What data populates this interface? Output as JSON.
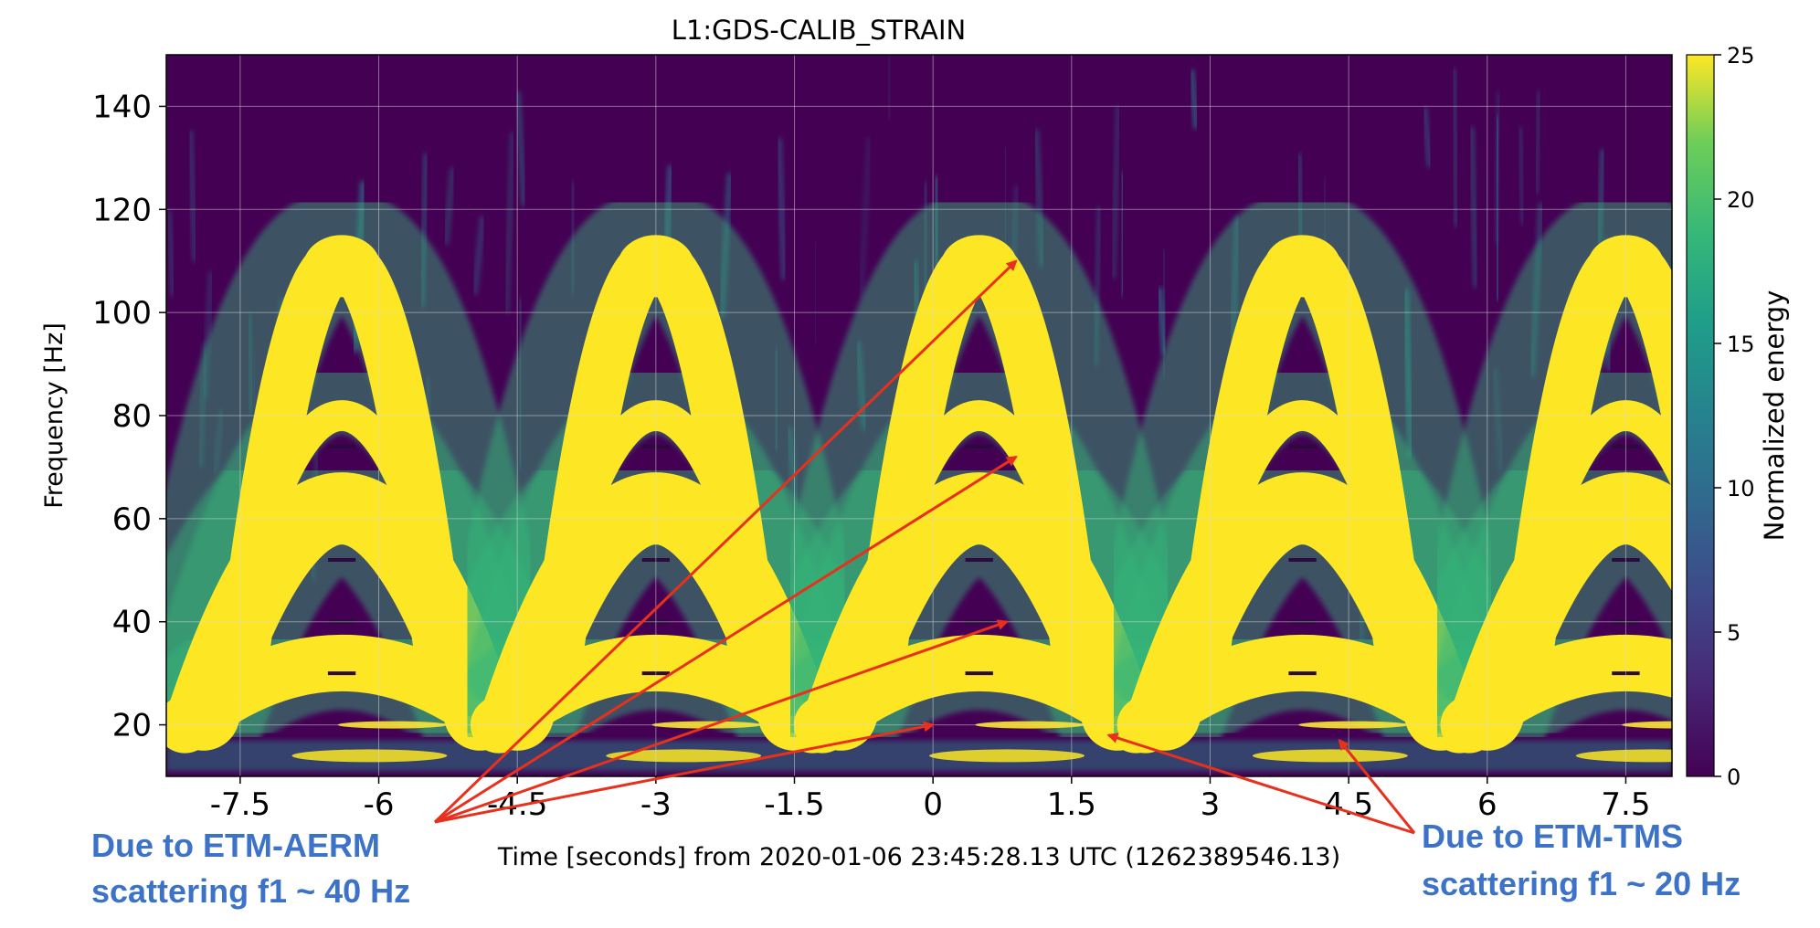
{
  "chart_data": {
    "type": "heatmap",
    "title": "L1:GDS-CALIB_STRAIN",
    "xlabel": "Time [seconds] from 2020-01-06 23:45:28.13 UTC (1262389546.13)",
    "ylabel": "Frequency [Hz]",
    "xlim": [
      -8.3,
      8.0
    ],
    "ylim": [
      10,
      150
    ],
    "x_ticks": [
      -7.5,
      -6,
      -4.5,
      -3,
      -1.5,
      0,
      1.5,
      3,
      4.5,
      6,
      7.5
    ],
    "x_tick_labels": [
      "-7.5",
      "-6",
      "-4.5",
      "-3",
      "-1.5",
      "0",
      "1.5",
      "3",
      "4.5",
      "6",
      "7.5"
    ],
    "y_ticks": [
      20,
      40,
      60,
      80,
      100,
      120,
      140
    ],
    "y_tick_labels": [
      "20",
      "40",
      "60",
      "80",
      "100",
      "120",
      "140"
    ],
    "grid": true,
    "colorbar": {
      "label": "Normalized energy",
      "range": [
        0,
        25
      ],
      "ticks": [
        0,
        5,
        10,
        15,
        20,
        25
      ],
      "tick_labels": [
        "0",
        "5",
        "10",
        "15",
        "20",
        "25"
      ],
      "colormap": "viridis"
    },
    "arch_centers_s": [
      -6.4,
      -3.0,
      0.5,
      4.0,
      7.5
    ],
    "arch_halfwidth_s": 1.7,
    "arch_bands": [
      {
        "peak_hz": 32,
        "base_hz": 20,
        "thickness_hz": 11
      },
      {
        "peak_hz": 62,
        "base_hz": 22,
        "thickness_hz": 14
      },
      {
        "peak_hz": 80,
        "base_hz": 30,
        "thickness_hz": 6
      },
      {
        "peak_hz": 110,
        "base_hz": 30,
        "thickness_hz": 10
      }
    ],
    "low_band_hz": 14,
    "scattering_line_hz": 20,
    "annotations": [
      {
        "text_lines": [
          "Due to ETM-AERM",
          "scattering f1 ~ 40 Hz"
        ],
        "color": "#3d72c9",
        "arrows_to": [
          [
            0.9,
            110
          ],
          [
            0.9,
            72
          ],
          [
            0.8,
            40
          ],
          [
            0.0,
            20
          ]
        ]
      },
      {
        "text_lines": [
          "Due to ETM-TMS",
          "scattering f1 ~ 20 Hz"
        ],
        "color": "#3d72c9",
        "arrows_to": [
          [
            1.9,
            18
          ],
          [
            4.4,
            17
          ]
        ]
      }
    ],
    "arrow_color": "#e8301c"
  }
}
